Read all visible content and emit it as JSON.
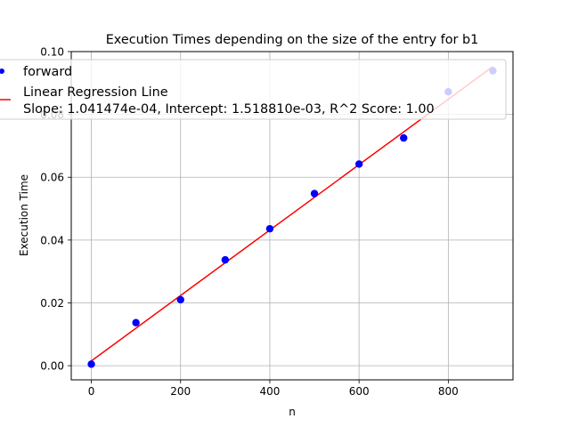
{
  "chart_data": {
    "type": "scatter",
    "title": "Execution Times depending on the size of the entry for b1",
    "xlabel": "n",
    "ylabel": "Execution Time",
    "xlim": [
      -45,
      945
    ],
    "ylim": [
      -0.0045,
      0.1
    ],
    "xticks": [
      0,
      200,
      400,
      600,
      800
    ],
    "xtick_labels": [
      "0",
      "200",
      "400",
      "600",
      "800"
    ],
    "yticks": [
      0.0,
      0.02,
      0.04,
      0.06,
      0.08,
      0.1
    ],
    "ytick_labels": [
      "0.00",
      "0.02",
      "0.04",
      "0.06",
      "0.08",
      "0.10"
    ],
    "grid": true,
    "legend_position": "top-right",
    "series": [
      {
        "name": "forward",
        "kind": "scatter",
        "color": "#0000ff",
        "x": [
          0,
          100,
          200,
          300,
          400,
          500,
          600,
          700,
          800,
          900
        ],
        "y": [
          0.0005,
          0.0137,
          0.021,
          0.0337,
          0.0436,
          0.0548,
          0.0642,
          0.0725,
          0.0872,
          0.0939
        ]
      },
      {
        "name": "Linear Regression Line",
        "kind": "line",
        "color": "#ff0000",
        "x": [
          0,
          900
        ],
        "y": [
          0.0015188,
          0.0952515
        ]
      }
    ],
    "legend": {
      "entries": [
        {
          "label": "forward"
        },
        {
          "label": "Linear Regression Line",
          "sublabel": "Slope: 1.041474e-04, Intercept: 1.518810e-03, R^2 Score: 1.00"
        }
      ]
    }
  }
}
